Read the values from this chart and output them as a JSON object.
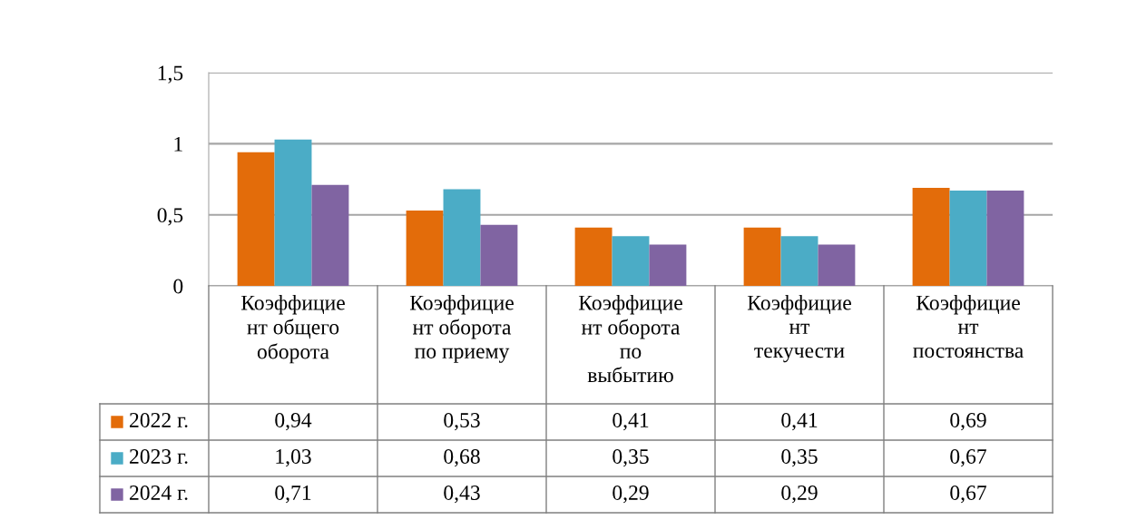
{
  "chart_data": {
    "type": "bar",
    "categories": [
      "Коэффицие\nнт общего\nоборота",
      "Коэффицие\nнт оборота\nпо приему",
      "Коэффицие\nнт оборота\nпо\nвыбытию",
      "Коэффицие\nнт\nтекучести",
      "Коэффицие\nнт\nпостоянства"
    ],
    "series": [
      {
        "name": "2022 г.",
        "color": "#e36c0a",
        "values": [
          0.94,
          0.53,
          0.41,
          0.41,
          0.69
        ],
        "value_labels": [
          "0,94",
          "0,53",
          "0,41",
          "0,41",
          "0,69"
        ]
      },
      {
        "name": "2023 г.",
        "color": "#4bacc6",
        "values": [
          1.03,
          0.68,
          0.35,
          0.35,
          0.67
        ],
        "value_labels": [
          "1,03",
          "0,68",
          "0,35",
          "0,35",
          "0,67"
        ]
      },
      {
        "name": "2024 г.",
        "color": "#8064a2",
        "values": [
          0.71,
          0.43,
          0.29,
          0.29,
          0.67
        ],
        "value_labels": [
          "0,71",
          "0,43",
          "0,29",
          "0,29",
          "0,67"
        ]
      }
    ],
    "ylim": [
      0,
      1.5
    ],
    "yticks": [
      0,
      {
        "value": 0.5,
        "label": "0,5"
      },
      1,
      {
        "value": 1.5,
        "label": "1,5"
      }
    ],
    "grid": "y",
    "legend": "bottom"
  }
}
